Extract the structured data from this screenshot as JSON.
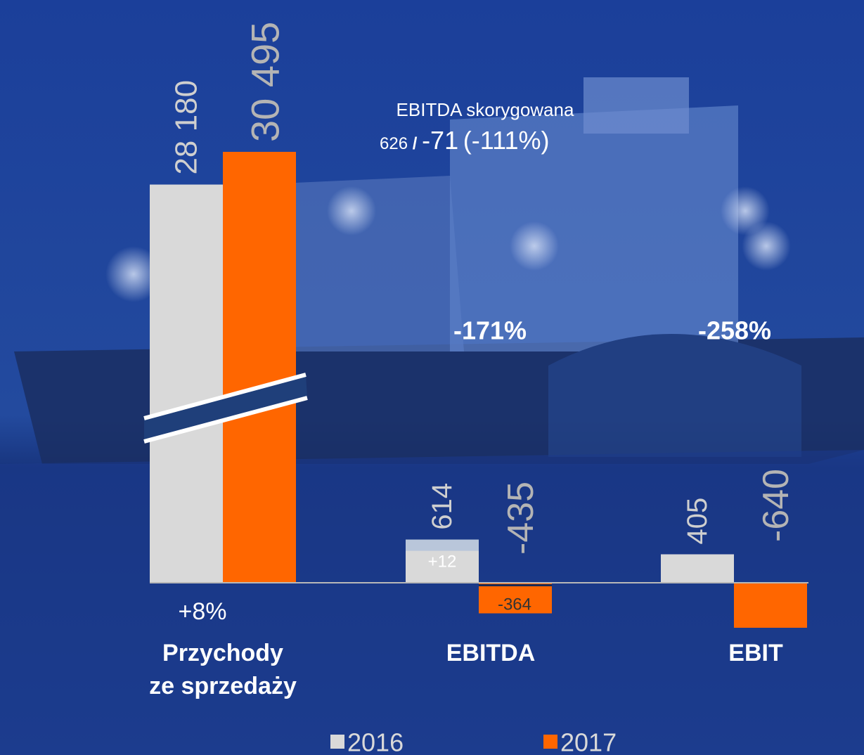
{
  "chart_data": {
    "type": "bar",
    "categories": [
      [
        "Przychody",
        "ze sprzedaży"
      ],
      "EBITDA",
      "EBIT"
    ],
    "series": [
      {
        "name": "2016",
        "color": "#d9d9d9",
        "values": [
          28180,
          614,
          405
        ],
        "value_labels": [
          "28 180",
          "614",
          "405"
        ]
      },
      {
        "name": "2017",
        "color": "#ff6600",
        "values": [
          30495,
          -435,
          -640
        ],
        "value_labels": [
          "30 495",
          "-435",
          "-640"
        ]
      }
    ],
    "changes": [
      "+8%",
      "-171%",
      "-258%"
    ],
    "inner_labels": [
      "+12",
      "-364"
    ],
    "adjusted": {
      "title": "EBITDA skorygowana",
      "value_2016": "626",
      "separator": "/",
      "value_2017": "-71",
      "change": "(-111%)"
    }
  }
}
